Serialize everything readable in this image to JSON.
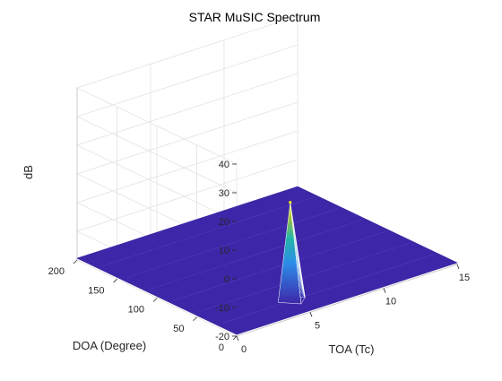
{
  "chart_data": {
    "type": "surface",
    "title": "STAR MuSIC Spectrum",
    "xlabel": "TOA (Tc)",
    "ylabel": "DOA (Degree)",
    "zlabel": "dB",
    "xlim": [
      0,
      15
    ],
    "ylim": [
      0,
      200
    ],
    "zlim": [
      -20,
      40
    ],
    "x_ticks": [
      "0",
      "5",
      "10",
      "15"
    ],
    "y_ticks": [
      "0",
      "50",
      "100",
      "150",
      "200"
    ],
    "z_ticks": [
      "-20",
      "-10",
      "0",
      "10",
      "20",
      "30",
      "40"
    ],
    "grid": true,
    "floor_level_db": -20,
    "peak": {
      "toa": 5,
      "doa": 25,
      "db": 15
    },
    "colormap": [
      "#3e26a8",
      "#2c8ce8",
      "#24b7a9",
      "#a4be3b",
      "#f9fb0e"
    ]
  }
}
